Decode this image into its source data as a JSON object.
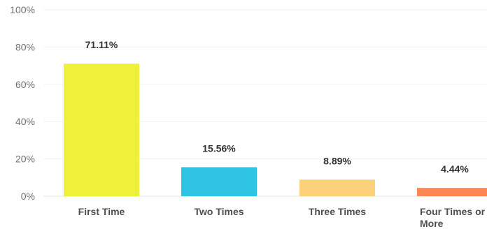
{
  "chart_data": {
    "type": "bar",
    "title": "",
    "xlabel": "",
    "ylabel": "",
    "categories": [
      "First Time",
      "Two Times",
      "Three Times",
      "Four Times or More"
    ],
    "values": [
      71.11,
      15.56,
      8.89,
      4.44
    ],
    "data_labels": [
      "71.11%",
      "15.56%",
      "8.89%",
      "4.44%"
    ],
    "ylim": [
      0,
      100
    ],
    "y_ticks": [
      0,
      20,
      40,
      60,
      80,
      100
    ],
    "y_tick_labels": [
      "0%",
      "20%",
      "40%",
      "60%",
      "80%",
      "100%"
    ],
    "bar_colors": [
      "#eff03a",
      "#2fc3e4",
      "#fbd17c",
      "#fd8652"
    ],
    "grid": true,
    "legend": "none"
  }
}
